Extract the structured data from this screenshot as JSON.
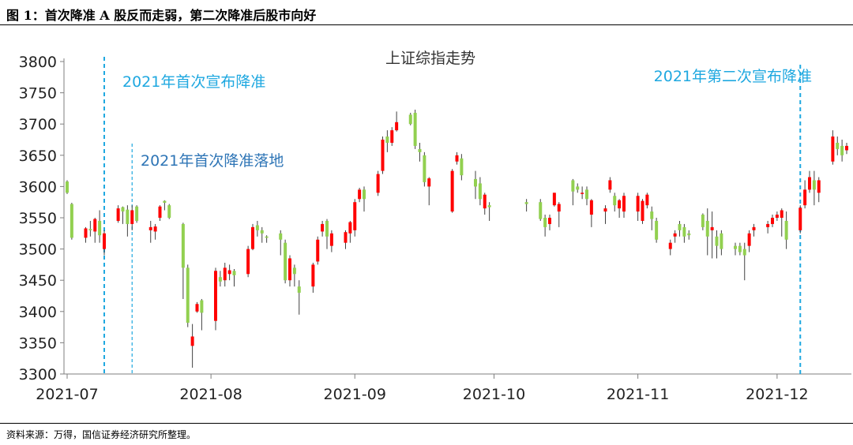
{
  "figure_title": "图 1：首次降准 A 股反而走弱，第二次降准后股市向好",
  "source_note": "资料来源：万得，国信证券经济研究所整理。",
  "colors": {
    "up": "#ff0000",
    "down": "#92d050",
    "marker_line": "#1fa8e0",
    "annotation_light": "#1fa8e0",
    "annotation_dark": "#2e75b6",
    "axis": "#7f7f7f"
  },
  "chart_data": {
    "type": "candlestick",
    "title": "上证综指走势",
    "xlabel": "",
    "ylabel": "",
    "ylim": [
      3300,
      3800
    ],
    "yticks": [
      3300,
      3350,
      3400,
      3450,
      3500,
      3550,
      3600,
      3650,
      3700,
      3750,
      3800
    ],
    "xticks": [
      "2021-07",
      "2021-08",
      "2021-09",
      "2021-10",
      "2021-11",
      "2021-12"
    ],
    "grid": false,
    "annotations": [
      {
        "text": "2021年首次宣布降准",
        "x": "2021-07-09",
        "style": "light"
      },
      {
        "text": "2021年首次降准落地",
        "x": "2021-07-15",
        "style": "dark"
      },
      {
        "text": "2021年第二次宣布降准",
        "x": "2021-12-06",
        "style": "light"
      }
    ],
    "candles": [
      [
        "2021-07-01",
        3608,
        3610,
        3588,
        3590
      ],
      [
        "2021-07-02",
        3572,
        3574,
        3515,
        3518
      ],
      [
        "2021-07-05",
        3518,
        3535,
        3510,
        3533
      ],
      [
        "2021-07-06",
        3532,
        3545,
        3520,
        3530
      ],
      [
        "2021-07-07",
        3528,
        3550,
        3510,
        3548
      ],
      [
        "2021-07-08",
        3545,
        3562,
        3510,
        3522
      ],
      [
        "2021-07-09",
        3500,
        3530,
        3490,
        3525
      ],
      [
        "2021-07-12",
        3545,
        3570,
        3542,
        3565
      ],
      [
        "2021-07-13",
        3567,
        3568,
        3540,
        3560
      ],
      [
        "2021-07-14",
        3563,
        3570,
        3520,
        3540
      ],
      [
        "2021-07-15",
        3540,
        3570,
        3530,
        3562
      ],
      [
        "2021-07-16",
        3568,
        3570,
        3542,
        3545
      ],
      [
        "2021-07-19",
        3530,
        3545,
        3510,
        3535
      ],
      [
        "2021-07-20",
        3528,
        3540,
        3515,
        3536
      ],
      [
        "2021-07-21",
        3550,
        3570,
        3545,
        3568
      ],
      [
        "2021-07-22",
        3577,
        3578,
        3562,
        3574
      ],
      [
        "2021-07-23",
        3570,
        3572,
        3548,
        3550
      ],
      [
        "2021-07-26",
        3540,
        3542,
        3420,
        3470
      ],
      [
        "2021-07-27",
        3470,
        3475,
        3375,
        3382
      ],
      [
        "2021-07-28",
        3345,
        3380,
        3310,
        3360
      ],
      [
        "2021-07-29",
        3400,
        3415,
        3398,
        3412
      ],
      [
        "2021-07-30",
        3418,
        3420,
        3370,
        3398
      ],
      [
        "2021-08-02",
        3385,
        3470,
        3370,
        3465
      ],
      [
        "2021-08-03",
        3455,
        3465,
        3440,
        3448
      ],
      [
        "2021-08-04",
        3450,
        3478,
        3440,
        3470
      ],
      [
        "2021-08-05",
        3460,
        3475,
        3450,
        3466
      ],
      [
        "2021-08-06",
        3465,
        3468,
        3440,
        3458
      ],
      [
        "2021-08-09",
        3460,
        3505,
        3455,
        3500
      ],
      [
        "2021-08-10",
        3500,
        3540,
        3498,
        3535
      ],
      [
        "2021-08-11",
        3538,
        3545,
        3520,
        3530
      ],
      [
        "2021-08-12",
        3530,
        3535,
        3510,
        3525
      ],
      [
        "2021-08-13",
        3520,
        3522,
        3510,
        3518
      ],
      [
        "2021-08-16",
        3525,
        3530,
        3490,
        3515
      ],
      [
        "2021-08-17",
        3510,
        3515,
        3445,
        3450
      ],
      [
        "2021-08-18",
        3450,
        3490,
        3440,
        3485
      ],
      [
        "2021-08-19",
        3470,
        3475,
        3440,
        3460
      ],
      [
        "2021-08-20",
        3440,
        3450,
        3395,
        3430
      ],
      [
        "2021-08-23",
        3440,
        3478,
        3430,
        3475
      ],
      [
        "2021-08-24",
        3480,
        3520,
        3475,
        3515
      ],
      [
        "2021-08-25",
        3528,
        3545,
        3520,
        3540
      ],
      [
        "2021-08-26",
        3545,
        3548,
        3500,
        3520
      ],
      [
        "2021-08-27",
        3505,
        3530,
        3495,
        3525
      ],
      [
        "2021-08-30",
        3510,
        3530,
        3500,
        3527
      ],
      [
        "2021-08-31",
        3525,
        3545,
        3510,
        3543
      ],
      [
        "2021-09-01",
        3530,
        3580,
        3520,
        3575
      ],
      [
        "2021-09-02",
        3580,
        3598,
        3575,
        3595
      ],
      [
        "2021-09-03",
        3595,
        3600,
        3560,
        3580
      ],
      [
        "2021-09-06",
        3590,
        3625,
        3585,
        3620
      ],
      [
        "2021-09-07",
        3625,
        3680,
        3620,
        3675
      ],
      [
        "2021-09-08",
        3680,
        3690,
        3655,
        3670
      ],
      [
        "2021-09-09",
        3670,
        3695,
        3665,
        3690
      ],
      [
        "2021-09-10",
        3690,
        3720,
        3688,
        3703
      ],
      [
        "2021-09-13",
        3715,
        3718,
        3698,
        3700
      ],
      [
        "2021-09-14",
        3718,
        3723,
        3660,
        3665
      ],
      [
        "2021-09-15",
        3660,
        3670,
        3640,
        3655
      ],
      [
        "2021-09-16",
        3650,
        3655,
        3600,
        3607
      ],
      [
        "2021-09-17",
        3600,
        3615,
        3570,
        3613
      ],
      [
        "2021-09-22",
        3560,
        3628,
        3558,
        3625
      ],
      [
        "2021-09-23",
        3640,
        3655,
        3635,
        3650
      ],
      [
        "2021-09-24",
        3645,
        3652,
        3610,
        3618
      ],
      [
        "2021-09-27",
        3612,
        3625,
        3580,
        3600
      ],
      [
        "2021-09-28",
        3605,
        3615,
        3570,
        3580
      ],
      [
        "2021-09-29",
        3565,
        3590,
        3555,
        3587
      ],
      [
        "2021-09-30",
        3570,
        3575,
        3545,
        3567
      ],
      [
        "2021-10-08",
        3575,
        3580,
        3560,
        3572
      ],
      [
        "2021-10-11",
        3575,
        3580,
        3545,
        3548
      ],
      [
        "2021-10-12",
        3550,
        3555,
        3520,
        3535
      ],
      [
        "2021-10-13",
        3540,
        3555,
        3530,
        3550
      ],
      [
        "2021-10-14",
        3570,
        3590,
        3568,
        3590
      ],
      [
        "2021-10-15",
        3560,
        3575,
        3535,
        3572
      ],
      [
        "2021-10-18",
        3610,
        3612,
        3570,
        3592
      ],
      [
        "2021-10-19",
        3600,
        3605,
        3590,
        3595
      ],
      [
        "2021-10-20",
        3590,
        3600,
        3580,
        3590
      ],
      [
        "2021-10-21",
        3595,
        3600,
        3570,
        3580
      ],
      [
        "2021-10-22",
        3555,
        3580,
        3535,
        3578
      ],
      [
        "2021-10-25",
        3560,
        3570,
        3540,
        3565
      ],
      [
        "2021-10-26",
        3595,
        3615,
        3590,
        3610
      ],
      [
        "2021-10-27",
        3585,
        3590,
        3560,
        3570
      ],
      [
        "2021-10-28",
        3565,
        3580,
        3550,
        3578
      ],
      [
        "2021-10-29",
        3560,
        3590,
        3550,
        3585
      ],
      [
        "2021-11-01",
        3560,
        3590,
        3545,
        3585
      ],
      [
        "2021-11-02",
        3545,
        3580,
        3540,
        3577
      ],
      [
        "2021-11-03",
        3570,
        3590,
        3565,
        3587
      ],
      [
        "2021-11-04",
        3560,
        3568,
        3530,
        3548
      ],
      [
        "2021-11-05",
        3545,
        3550,
        3510,
        3515
      ],
      [
        "2021-11-08",
        3500,
        3515,
        3490,
        3510
      ],
      [
        "2021-11-09",
        3520,
        3530,
        3510,
        3525
      ],
      [
        "2021-11-10",
        3540,
        3545,
        3520,
        3530
      ],
      [
        "2021-11-11",
        3535,
        3540,
        3510,
        3520
      ],
      [
        "2021-11-12",
        3525,
        3530,
        3515,
        3522
      ],
      [
        "2021-11-15",
        3555,
        3557,
        3530,
        3535
      ],
      [
        "2021-11-16",
        3545,
        3565,
        3490,
        3520
      ],
      [
        "2021-11-17",
        3530,
        3560,
        3485,
        3535
      ],
      [
        "2021-11-18",
        3520,
        3530,
        3485,
        3505
      ],
      [
        "2021-11-19",
        3525,
        3530,
        3490,
        3500
      ],
      [
        "2021-11-22",
        3505,
        3510,
        3490,
        3500
      ],
      [
        "2021-11-23",
        3505,
        3510,
        3490,
        3495
      ],
      [
        "2021-11-24",
        3500,
        3510,
        3450,
        3490
      ],
      [
        "2021-11-25",
        3505,
        3530,
        3495,
        3525
      ],
      [
        "2021-11-26",
        3530,
        3540,
        3520,
        3535
      ],
      [
        "2021-11-29",
        3535,
        3545,
        3525,
        3540
      ],
      [
        "2021-11-30",
        3540,
        3555,
        3535,
        3550
      ],
      [
        "2021-12-01",
        3550,
        3560,
        3545,
        3555
      ],
      [
        "2021-12-02",
        3550,
        3565,
        3520,
        3562
      ],
      [
        "2021-12-03",
        3545,
        3560,
        3500,
        3515
      ],
      [
        "2021-12-06",
        3530,
        3570,
        3525,
        3566
      ],
      [
        "2021-12-07",
        3570,
        3610,
        3565,
        3595
      ],
      [
        "2021-12-08",
        3595,
        3625,
        3590,
        3615
      ],
      [
        "2021-12-09",
        3610,
        3625,
        3570,
        3595
      ],
      [
        "2021-12-10",
        3590,
        3615,
        3575,
        3610
      ],
      [
        "2021-12-13",
        3640,
        3690,
        3635,
        3680
      ],
      [
        "2021-12-14",
        3670,
        3680,
        3650,
        3660
      ],
      [
        "2021-12-15",
        3665,
        3675,
        3640,
        3650
      ],
      [
        "2021-12-16",
        3658,
        3670,
        3652,
        3665
      ]
    ]
  }
}
